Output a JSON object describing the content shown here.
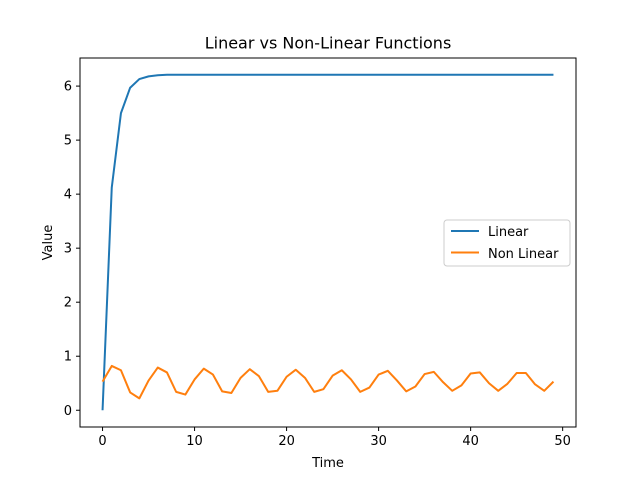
{
  "chart_data": {
    "type": "line",
    "title": "Linear vs Non-Linear Functions",
    "xlabel": "Time",
    "ylabel": "Value",
    "xlim": [
      -2.45,
      51.45
    ],
    "ylim": [
      -0.31,
      6.52
    ],
    "xticks": [
      0,
      10,
      20,
      30,
      40,
      50
    ],
    "yticks": [
      0,
      1,
      2,
      3,
      4,
      5,
      6
    ],
    "legend_position": "center-right",
    "x": [
      0,
      1,
      2,
      3,
      4,
      5,
      6,
      7,
      8,
      9,
      10,
      11,
      12,
      13,
      14,
      15,
      16,
      17,
      18,
      19,
      20,
      21,
      22,
      23,
      24,
      25,
      26,
      27,
      28,
      29,
      30,
      31,
      32,
      33,
      34,
      35,
      36,
      37,
      38,
      39,
      40,
      41,
      42,
      43,
      44,
      45,
      46,
      47,
      48,
      49
    ],
    "series": [
      {
        "name": "Linear",
        "color": "#1f77b4",
        "values": [
          0.0,
          4.12,
          5.5,
          5.97,
          6.13,
          6.18,
          6.2,
          6.21,
          6.21,
          6.21,
          6.21,
          6.21,
          6.21,
          6.21,
          6.21,
          6.21,
          6.21,
          6.21,
          6.21,
          6.21,
          6.21,
          6.21,
          6.21,
          6.21,
          6.21,
          6.21,
          6.21,
          6.21,
          6.21,
          6.21,
          6.21,
          6.21,
          6.21,
          6.21,
          6.21,
          6.21,
          6.21,
          6.21,
          6.21,
          6.21,
          6.21,
          6.21,
          6.21,
          6.21,
          6.21,
          6.21,
          6.21,
          6.21,
          6.21,
          6.21
        ]
      },
      {
        "name": "Non Linear",
        "color": "#ff7f0e",
        "values": [
          0.53,
          0.82,
          0.74,
          0.33,
          0.22,
          0.55,
          0.79,
          0.7,
          0.34,
          0.29,
          0.57,
          0.77,
          0.66,
          0.35,
          0.32,
          0.6,
          0.76,
          0.63,
          0.34,
          0.36,
          0.62,
          0.75,
          0.6,
          0.34,
          0.39,
          0.64,
          0.74,
          0.57,
          0.34,
          0.42,
          0.66,
          0.73,
          0.55,
          0.35,
          0.44,
          0.67,
          0.71,
          0.52,
          0.36,
          0.46,
          0.68,
          0.7,
          0.5,
          0.36,
          0.49,
          0.69,
          0.69,
          0.48,
          0.36,
          0.53
        ]
      }
    ]
  }
}
